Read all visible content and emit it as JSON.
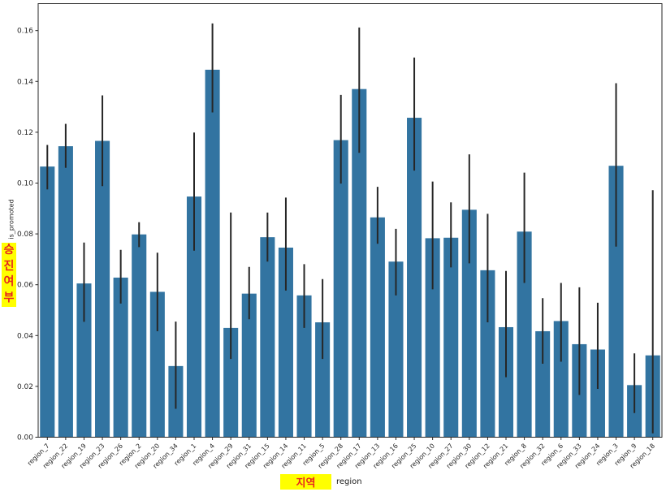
{
  "figure": {
    "title": "",
    "y_axis_label": "is_promoted",
    "y_axis_label_translation": "승진여부",
    "x_axis_label": "region",
    "x_axis_label_translation": "지역",
    "translation_highlight_color": "#ffff00",
    "translation_text_color": "#e6241f",
    "background_color": "#ffffff"
  },
  "chart_data": {
    "type": "bar",
    "title": "",
    "xlabel": "region",
    "ylabel": "is_promoted",
    "grid": false,
    "legend_position": "none",
    "bar_color": "#3274a1",
    "error_bar_color": "#262626",
    "axis_color": "#262626",
    "ylim": [
      0,
      0.1706
    ],
    "y_ticks": [
      0.0,
      0.02,
      0.04,
      0.06,
      0.08,
      0.1,
      0.12,
      0.14,
      0.16
    ],
    "categories": [
      "region_7",
      "region_22",
      "region_19",
      "region_23",
      "region_26",
      "region_2",
      "region_20",
      "region_34",
      "region_1",
      "region_4",
      "region_29",
      "region_31",
      "region_15",
      "region_14",
      "region_11",
      "region_5",
      "region_28",
      "region_17",
      "region_13",
      "region_16",
      "region_25",
      "region_10",
      "region_27",
      "region_30",
      "region_12",
      "region_21",
      "region_8",
      "region_32",
      "region_6",
      "region_33",
      "region_24",
      "region_3",
      "region_9",
      "region_18"
    ],
    "values": [
      0.1065,
      0.1145,
      0.0605,
      0.1166,
      0.0628,
      0.0798,
      0.0572,
      0.028,
      0.0947,
      0.1446,
      0.043,
      0.0565,
      0.0787,
      0.0746,
      0.0558,
      0.0452,
      0.1169,
      0.137,
      0.0865,
      0.0691,
      0.1257,
      0.0783,
      0.0785,
      0.0895,
      0.0657,
      0.0433,
      0.0809,
      0.0417,
      0.0457,
      0.0366,
      0.0345,
      0.1068,
      0.0205,
      0.0322
    ],
    "error_low": [
      0.0975,
      0.106,
      0.0454,
      0.0988,
      0.0526,
      0.0748,
      0.0417,
      0.0112,
      0.0734,
      0.1278,
      0.0308,
      0.0464,
      0.0691,
      0.0577,
      0.043,
      0.0308,
      0.0998,
      0.1119,
      0.0761,
      0.0558,
      0.1049,
      0.0582,
      0.0668,
      0.0684,
      0.0452,
      0.0236,
      0.0607,
      0.0289,
      0.0297,
      0.0166,
      0.019,
      0.075,
      0.0095,
      0.0015
    ],
    "error_high": [
      0.115,
      0.1233,
      0.0766,
      0.1345,
      0.0737,
      0.0846,
      0.0726,
      0.0455,
      0.1199,
      0.1628,
      0.0884,
      0.067,
      0.0884,
      0.0943,
      0.0681,
      0.0622,
      0.1347,
      0.1612,
      0.0985,
      0.082,
      0.1494,
      0.1006,
      0.0924,
      0.1113,
      0.0879,
      0.0654,
      0.1041,
      0.0547,
      0.0607,
      0.059,
      0.0529,
      0.1393,
      0.033,
      0.0972
    ]
  }
}
